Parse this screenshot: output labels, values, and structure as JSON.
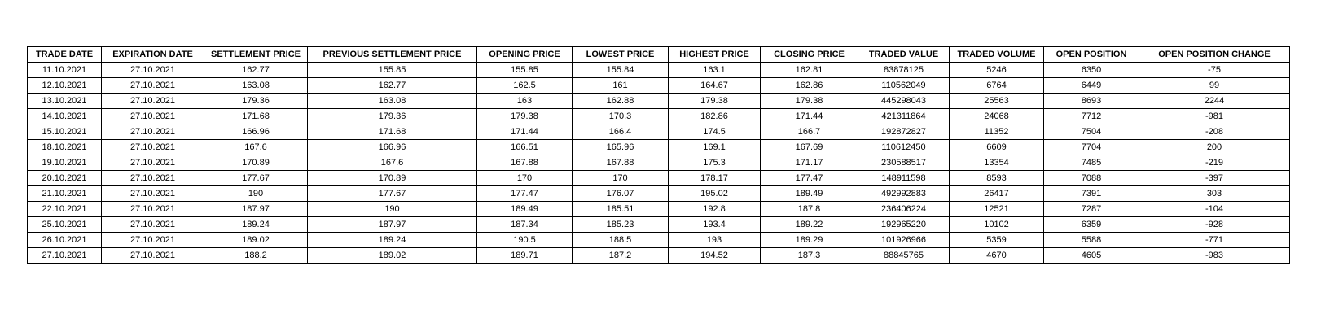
{
  "table": {
    "columns": [
      "TRADE DATE",
      "EXPIRATION DATE",
      "SETTLEMENT PRICE",
      "PREVIOUS SETTLEMENT PRICE",
      "OPENING PRICE",
      "LOWEST PRICE",
      "HIGHEST PRICE",
      "CLOSING PRICE",
      "TRADED VALUE",
      "TRADED VOLUME",
      "OPEN POSITION",
      "OPEN POSITION CHANGE"
    ],
    "rows": [
      [
        "11.10.2021",
        "27.10.2021",
        "162.77",
        "155.85",
        "155.85",
        "155.84",
        "163.1",
        "162.81",
        "83878125",
        "5246",
        "6350",
        "-75"
      ],
      [
        "12.10.2021",
        "27.10.2021",
        "163.08",
        "162.77",
        "162.5",
        "161",
        "164.67",
        "162.86",
        "110562049",
        "6764",
        "6449",
        "99"
      ],
      [
        "13.10.2021",
        "27.10.2021",
        "179.36",
        "163.08",
        "163",
        "162.88",
        "179.38",
        "179.38",
        "445298043",
        "25563",
        "8693",
        "2244"
      ],
      [
        "14.10.2021",
        "27.10.2021",
        "171.68",
        "179.36",
        "179.38",
        "170.3",
        "182.86",
        "171.44",
        "421311864",
        "24068",
        "7712",
        "-981"
      ],
      [
        "15.10.2021",
        "27.10.2021",
        "166.96",
        "171.68",
        "171.44",
        "166.4",
        "174.5",
        "166.7",
        "192872827",
        "11352",
        "7504",
        "-208"
      ],
      [
        "18.10.2021",
        "27.10.2021",
        "167.6",
        "166.96",
        "166.51",
        "165.96",
        "169.1",
        "167.69",
        "110612450",
        "6609",
        "7704",
        "200"
      ],
      [
        "19.10.2021",
        "27.10.2021",
        "170.89",
        "167.6",
        "167.88",
        "167.88",
        "175.3",
        "171.17",
        "230588517",
        "13354",
        "7485",
        "-219"
      ],
      [
        "20.10.2021",
        "27.10.2021",
        "177.67",
        "170.89",
        "170",
        "170",
        "178.17",
        "177.47",
        "148911598",
        "8593",
        "7088",
        "-397"
      ],
      [
        "21.10.2021",
        "27.10.2021",
        "190",
        "177.67",
        "177.47",
        "176.07",
        "195.02",
        "189.49",
        "492992883",
        "26417",
        "7391",
        "303"
      ],
      [
        "22.10.2021",
        "27.10.2021",
        "187.97",
        "190",
        "189.49",
        "185.51",
        "192.8",
        "187.8",
        "236406224",
        "12521",
        "7287",
        "-104"
      ],
      [
        "25.10.2021",
        "27.10.2021",
        "189.24",
        "187.97",
        "187.34",
        "185.23",
        "193.4",
        "189.22",
        "192965220",
        "10102",
        "6359",
        "-928"
      ],
      [
        "26.10.2021",
        "27.10.2021",
        "189.02",
        "189.24",
        "190.5",
        "188.5",
        "193",
        "189.29",
        "101926966",
        "5359",
        "5588",
        "-771"
      ],
      [
        "27.10.2021",
        "27.10.2021",
        "188.2",
        "189.02",
        "189.71",
        "187.2",
        "194.52",
        "187.3",
        "88845765",
        "4670",
        "4605",
        "-983"
      ]
    ],
    "colors": {
      "border": "#000000",
      "text": "#000000",
      "background": "#ffffff"
    }
  }
}
